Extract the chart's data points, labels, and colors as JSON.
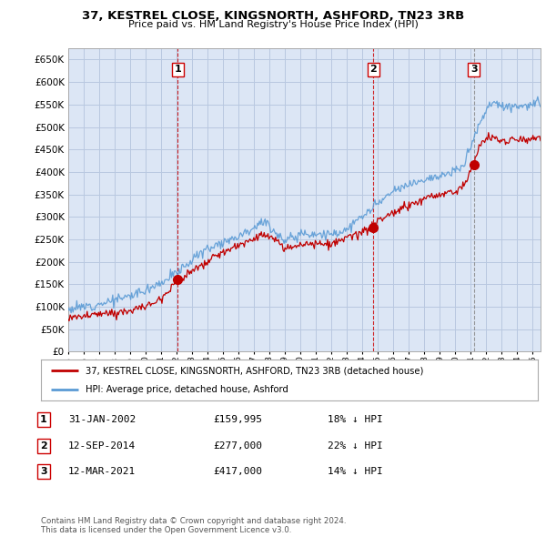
{
  "title": "37, KESTREL CLOSE, KINGSNORTH, ASHFORD, TN23 3RB",
  "subtitle": "Price paid vs. HM Land Registry's House Price Index (HPI)",
  "ylim": [
    0,
    675000
  ],
  "yticks": [
    0,
    50000,
    100000,
    150000,
    200000,
    250000,
    300000,
    350000,
    400000,
    450000,
    500000,
    550000,
    600000,
    650000
  ],
  "plot_bg_color": "#dce6f5",
  "background_color": "#ffffff",
  "grid_color": "#b8c8e0",
  "hpi_color": "#5b9bd5",
  "sale_color": "#c00000",
  "vline_color_red": "#cc0000",
  "vline_color_gray": "#888888",
  "legend_box_color": "#cc0000",
  "sale_points": [
    {
      "date_year": 2002.08,
      "price": 159995,
      "label": "1",
      "vline_style": "red"
    },
    {
      "date_year": 2014.7,
      "price": 277000,
      "label": "2",
      "vline_style": "red"
    },
    {
      "date_year": 2021.19,
      "price": 417000,
      "label": "3",
      "vline_style": "gray"
    }
  ],
  "table_rows": [
    {
      "num": "1",
      "date": "31-JAN-2002",
      "price": "£159,995",
      "pct": "18% ↓ HPI"
    },
    {
      "num": "2",
      "date": "12-SEP-2014",
      "price": "£277,000",
      "pct": "22% ↓ HPI"
    },
    {
      "num": "3",
      "date": "12-MAR-2021",
      "price": "£417,000",
      "pct": "14% ↓ HPI"
    }
  ],
  "legend_entries": [
    "37, KESTREL CLOSE, KINGSNORTH, ASHFORD, TN23 3RB (detached house)",
    "HPI: Average price, detached house, Ashford"
  ],
  "footnote": "Contains HM Land Registry data © Crown copyright and database right 2024.\nThis data is licensed under the Open Government Licence v3.0.",
  "xmin": 1995.0,
  "xmax": 2025.5
}
